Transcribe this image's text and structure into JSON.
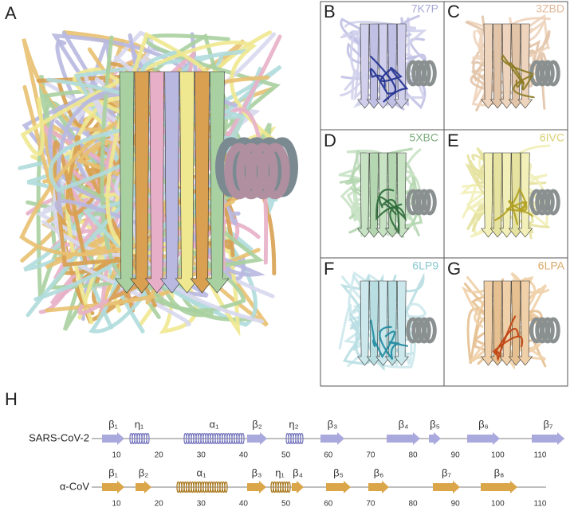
{
  "panels": {
    "a": {
      "label": "A"
    },
    "b": {
      "label": "B",
      "pdb": "7K7P"
    },
    "c": {
      "label": "C",
      "pdb": "3ZBD"
    },
    "d": {
      "label": "D",
      "pdb": "5XBC"
    },
    "e": {
      "label": "E",
      "pdb": "6IVC"
    },
    "f": {
      "label": "F",
      "pdb": "6LP9"
    },
    "g": {
      "label": "G",
      "pdb": "6LPA"
    }
  },
  "topology": {
    "label": "H",
    "ticks": [
      10,
      20,
      30,
      40,
      50,
      60,
      70,
      80,
      90,
      100,
      110
    ],
    "rows": [
      {
        "name": "SARS-CoV-2",
        "elements": [
          "β₁",
          "η₁",
          "α₁",
          "β₂",
          "η₂",
          "β₃",
          "β₄",
          "β₅",
          "β₆",
          "β₇"
        ]
      },
      {
        "name": "α-CoV",
        "elements": [
          "β₁",
          "β₂",
          "α₁",
          "β₃",
          "η₁",
          "β₄",
          "β₅",
          "β₆",
          "β₇",
          "β₈"
        ]
      }
    ]
  }
}
